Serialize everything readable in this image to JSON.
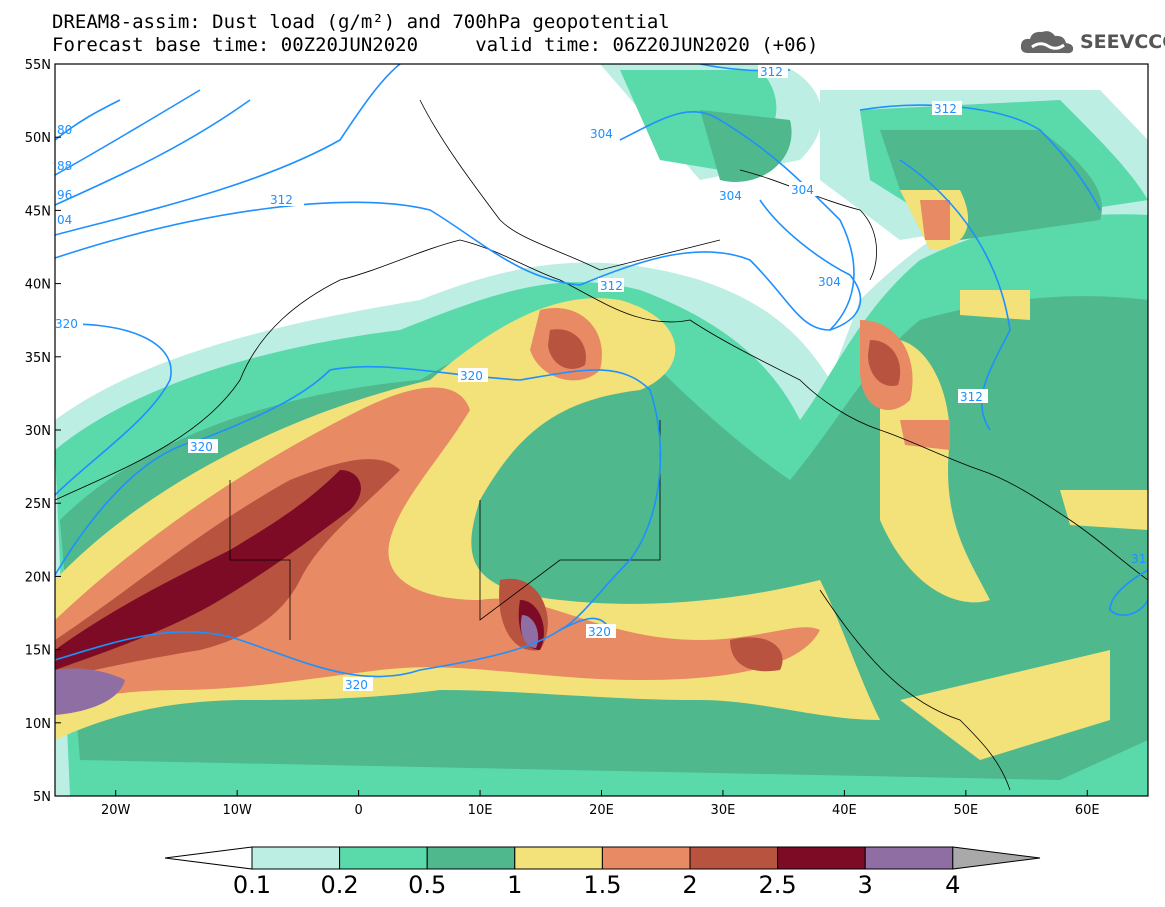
{
  "header": {
    "line1": "DREAM8-assim: Dust load (g/m²) and 700hPa geopotential",
    "line2": "Forecast base time: 00Z20JUN2020     valid time: 06Z20JUN2020 (+06)",
    "logo_text": "SEEVCCC"
  },
  "map": {
    "lon_range": [
      -25,
      65
    ],
    "lat_range": [
      5,
      55
    ],
    "lon_ticks": [
      "20W",
      "10W",
      "0",
      "10E",
      "20E",
      "30E",
      "40E",
      "50E",
      "60E"
    ],
    "lat_ticks": [
      "55N",
      "50N",
      "45N",
      "40N",
      "35N",
      "30N",
      "25N",
      "20N",
      "15N",
      "10N",
      "5N"
    ]
  },
  "contours": {
    "color": "#1e90ff",
    "labels": [
      "80",
      "88",
      "96",
      "04",
      "312",
      "304",
      "304",
      "304",
      "312",
      "312",
      "312",
      "320",
      "320",
      "320",
      "320",
      "320",
      "31"
    ]
  },
  "colorbar": {
    "levels": [
      "0.1",
      "0.2",
      "0.5",
      "1",
      "1.5",
      "2",
      "2.5",
      "3",
      "4"
    ],
    "colors": [
      "#ffffff",
      "#bdeee3",
      "#5ad9ab",
      "#4fb88c",
      "#f3e17a",
      "#e88a63",
      "#b8533f",
      "#7d0b26",
      "#8e6ea3",
      "#a9a9a9"
    ]
  }
}
